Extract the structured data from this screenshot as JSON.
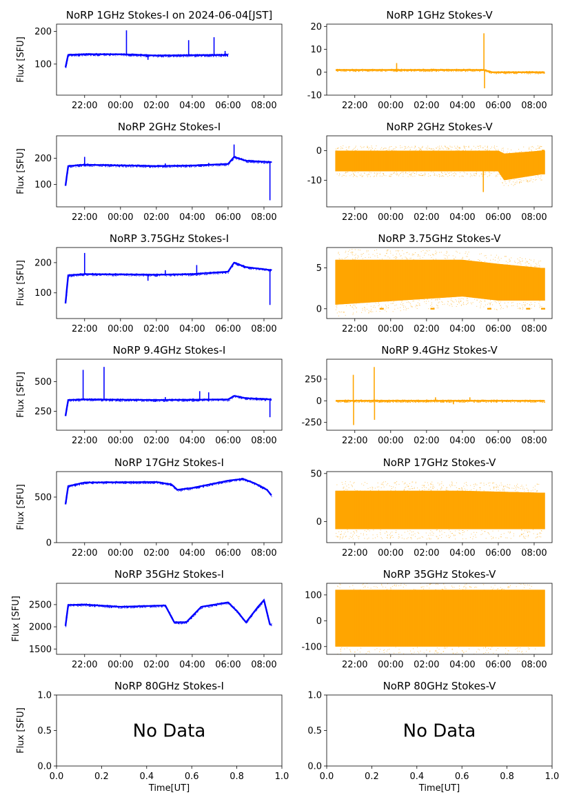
{
  "figure": {
    "colors": {
      "stokes_i": "#0000ff",
      "stokes_v": "#ffa500",
      "axis": "#000000"
    },
    "no_data_label": "No Data",
    "time_ticks": [
      "22:00",
      "00:00",
      "02:00",
      "04:00",
      "06:00",
      "08:00"
    ]
  },
  "chart_data": [
    {
      "type": "scatter",
      "title": "NoRP 1GHz Stokes-I on 2024-06-04[JST]",
      "ylabel": "Flux [SFU]",
      "xlabel": "",
      "xlim": [
        "20:26",
        "09:00"
      ],
      "ylim": [
        5,
        222
      ],
      "yticks": [
        100,
        200
      ],
      "color": "#0000ff",
      "baseline": [
        [
          "20:56",
          90
        ],
        [
          "21:05",
          128
        ],
        [
          "22:00",
          130
        ],
        [
          "00:00",
          130
        ],
        [
          "02:00",
          126
        ],
        [
          "04:00",
          127
        ],
        [
          "06:00",
          128
        ]
      ],
      "spikes": [
        [
          "00:20",
          203
        ],
        [
          "01:32",
          113
        ],
        [
          "03:48",
          173
        ],
        [
          "05:13",
          182
        ],
        [
          "05:50",
          140
        ]
      ],
      "data_end": "06:00"
    },
    {
      "type": "scatter",
      "title": "NoRP 1GHz Stokes-V",
      "ylabel": "",
      "xlabel": "",
      "xlim": [
        "20:26",
        "09:00"
      ],
      "ylim": [
        -10,
        21
      ],
      "yticks": [
        -10,
        0,
        10,
        20
      ],
      "color": "#ffa500",
      "baseline": [
        [
          "20:56",
          1
        ],
        [
          "02:00",
          1
        ],
        [
          "05:10",
          1
        ],
        [
          "05:40",
          0
        ],
        [
          "08:35",
          0
        ]
      ],
      "spikes": [
        [
          "00:20",
          4
        ],
        [
          "05:12",
          17
        ],
        [
          "05:14",
          -7
        ]
      ],
      "data_end": "08:35"
    },
    {
      "type": "scatter",
      "title": "NoRP 2GHz Stokes-I",
      "ylabel": "Flux [SFU]",
      "xlabel": "",
      "xlim": [
        "20:26",
        "09:00"
      ],
      "ylim": [
        15,
        285
      ],
      "yticks": [
        100,
        200
      ],
      "color": "#0000ff",
      "baseline": [
        [
          "20:56",
          95
        ],
        [
          "21:05",
          170
        ],
        [
          "22:00",
          175
        ],
        [
          "02:00",
          170
        ],
        [
          "04:00",
          172
        ],
        [
          "06:00",
          178
        ],
        [
          "06:20",
          205
        ],
        [
          "07:00",
          190
        ],
        [
          "08:25",
          185
        ]
      ],
      "spikes": [
        [
          "22:00",
          205
        ],
        [
          "02:30",
          180
        ],
        [
          "04:55",
          182
        ],
        [
          "06:20",
          252
        ],
        [
          "08:20",
          40
        ]
      ],
      "data_end": "08:25"
    },
    {
      "type": "scatter",
      "title": "NoRP 2GHz Stokes-V",
      "ylabel": "",
      "xlabel": "",
      "xlim": [
        "20:26",
        "09:00"
      ],
      "ylim": [
        -19,
        5
      ],
      "yticks": [
        -10,
        0
      ],
      "color": "#ffa500",
      "band": [
        [
          "20:56",
          -7,
          0
        ],
        [
          "06:00",
          -7,
          0
        ],
        [
          "06:20",
          -10,
          -1
        ],
        [
          "08:25",
          -8,
          0
        ]
      ],
      "spikes": [
        [
          "05:10",
          -14
        ]
      ],
      "data_end": "08:35"
    },
    {
      "type": "scatter",
      "title": "NoRP 3.75GHz Stokes-I",
      "ylabel": "Flux [SFU]",
      "xlabel": "",
      "xlim": [
        "20:26",
        "09:00"
      ],
      "ylim": [
        15,
        250
      ],
      "yticks": [
        100,
        200
      ],
      "color": "#0000ff",
      "baseline": [
        [
          "20:56",
          65
        ],
        [
          "21:05",
          158
        ],
        [
          "22:00",
          162
        ],
        [
          "02:00",
          160
        ],
        [
          "04:00",
          162
        ],
        [
          "06:00",
          170
        ],
        [
          "06:20",
          200
        ],
        [
          "07:00",
          185
        ],
        [
          "08:25",
          175
        ]
      ],
      "spikes": [
        [
          "22:00",
          232
        ],
        [
          "01:32",
          140
        ],
        [
          "02:30",
          175
        ],
        [
          "04:15",
          192
        ],
        [
          "08:20",
          60
        ]
      ],
      "data_end": "08:25"
    },
    {
      "type": "scatter",
      "title": "NoRP 3.75GHz Stokes-V",
      "ylabel": "",
      "xlabel": "",
      "xlim": [
        "20:26",
        "09:00"
      ],
      "ylim": [
        -1.2,
        7.5
      ],
      "yticks": [
        0,
        5
      ],
      "color": "#ffa500",
      "band": [
        [
          "20:56",
          0.5,
          6
        ],
        [
          "04:00",
          1.5,
          6
        ],
        [
          "06:00",
          1,
          5.5
        ],
        [
          "08:25",
          1,
          5
        ]
      ],
      "zeros": [
        "23:30",
        "02:20",
        "05:30",
        "07:40",
        "08:30"
      ],
      "data_end": "08:35"
    },
    {
      "type": "scatter",
      "title": "NoRP 9.4GHz Stokes-I",
      "ylabel": "Flux [SFU]",
      "xlabel": "",
      "xlim": [
        "20:26",
        "09:00"
      ],
      "ylim": [
        90,
        690
      ],
      "yticks": [
        250,
        500
      ],
      "color": "#0000ff",
      "baseline": [
        [
          "20:56",
          210
        ],
        [
          "21:05",
          345
        ],
        [
          "22:00",
          350
        ],
        [
          "02:00",
          345
        ],
        [
          "06:00",
          350
        ],
        [
          "06:20",
          380
        ],
        [
          "07:00",
          360
        ],
        [
          "08:25",
          350
        ]
      ],
      "spikes": [
        [
          "21:55",
          600
        ],
        [
          "23:05",
          625
        ],
        [
          "02:30",
          370
        ],
        [
          "04:25",
          420
        ],
        [
          "04:55",
          410
        ],
        [
          "08:20",
          200
        ]
      ],
      "data_end": "08:25"
    },
    {
      "type": "scatter",
      "title": "NoRP 9.4GHz Stokes-V",
      "ylabel": "",
      "xlabel": "",
      "xlim": [
        "20:26",
        "09:00"
      ],
      "ylim": [
        -340,
        480
      ],
      "yticks": [
        -250,
        0,
        250
      ],
      "color": "#ffa500",
      "baseline": [
        [
          "20:56",
          0
        ],
        [
          "08:35",
          0
        ]
      ],
      "spikes": [
        [
          "21:55",
          300
        ],
        [
          "21:56",
          -280
        ],
        [
          "23:05",
          390
        ],
        [
          "23:06",
          -220
        ],
        [
          "02:30",
          40
        ],
        [
          "03:30",
          -40
        ],
        [
          "04:25",
          40
        ]
      ],
      "data_end": "08:35"
    },
    {
      "type": "scatter",
      "title": "NoRP 17GHz Stokes-I",
      "ylabel": "Flux [SFU]",
      "xlabel": "",
      "xlim": [
        "20:26",
        "09:00"
      ],
      "ylim": [
        0,
        780
      ],
      "yticks": [
        0,
        500
      ],
      "color": "#0000ff",
      "baseline": [
        [
          "20:56",
          420
        ],
        [
          "21:05",
          620
        ],
        [
          "22:00",
          660
        ],
        [
          "02:00",
          665
        ],
        [
          "02:50",
          640
        ],
        [
          "03:10",
          580
        ],
        [
          "04:00",
          600
        ],
        [
          "06:00",
          680
        ],
        [
          "06:50",
          700
        ],
        [
          "07:30",
          650
        ],
        [
          "08:10",
          580
        ],
        [
          "08:25",
          520
        ]
      ],
      "spikes": [],
      "data_end": "08:25"
    },
    {
      "type": "scatter",
      "title": "NoRP 17GHz Stokes-V",
      "ylabel": "",
      "xlabel": "",
      "xlim": [
        "20:26",
        "09:00"
      ],
      "ylim": [
        -22,
        52
      ],
      "yticks": [
        0,
        50
      ],
      "color": "#ffa500",
      "band": [
        [
          "20:56",
          -8,
          32
        ],
        [
          "04:00",
          -8,
          32
        ],
        [
          "08:25",
          -8,
          30
        ]
      ],
      "data_end": "08:35"
    },
    {
      "type": "scatter",
      "title": "NoRP 35GHz Stokes-I",
      "ylabel": "Flux [SFU]",
      "xlabel": "",
      "xlim": [
        "20:26",
        "09:00"
      ],
      "ylim": [
        1380,
        2980
      ],
      "yticks": [
        1500,
        2000,
        2500
      ],
      "color": "#0000ff",
      "baseline": [
        [
          "20:56",
          2020
        ],
        [
          "21:05",
          2490
        ],
        [
          "22:00",
          2500
        ],
        [
          "00:00",
          2450
        ],
        [
          "02:30",
          2480
        ],
        [
          "03:00",
          2100
        ],
        [
          "03:40",
          2100
        ],
        [
          "04:30",
          2450
        ],
        [
          "06:00",
          2550
        ],
        [
          "06:30",
          2350
        ],
        [
          "07:00",
          2100
        ],
        [
          "07:40",
          2450
        ],
        [
          "08:00",
          2600
        ],
        [
          "08:20",
          2050
        ]
      ],
      "spikes": [],
      "data_end": "08:25"
    },
    {
      "type": "scatter",
      "title": "NoRP 35GHz Stokes-V",
      "ylabel": "",
      "xlabel": "",
      "xlim": [
        "20:26",
        "09:00"
      ],
      "ylim": [
        -130,
        145
      ],
      "yticks": [
        -100,
        0,
        100
      ],
      "color": "#ffa500",
      "band": [
        [
          "20:56",
          -100,
          120
        ],
        [
          "08:25",
          -100,
          120
        ]
      ],
      "data_end": "08:35"
    },
    {
      "type": "scatter",
      "title": "NoRP 80GHz Stokes-I",
      "ylabel": "Flux [SFU]",
      "xlabel": "Time[UT]",
      "xlim": [
        0,
        1
      ],
      "ylim": [
        0,
        1
      ],
      "yticks": [
        0.0,
        0.5,
        1.0
      ],
      "xticks": [
        0.0,
        0.2,
        0.4,
        0.6,
        0.8,
        1.0
      ],
      "no_data": true
    },
    {
      "type": "scatter",
      "title": "NoRP 80GHz Stokes-V",
      "ylabel": "",
      "xlabel": "Time[UT]",
      "xlim": [
        0,
        1
      ],
      "ylim": [
        0,
        1
      ],
      "yticks": [
        0.0,
        0.5,
        1.0
      ],
      "xticks": [
        0.0,
        0.2,
        0.4,
        0.6,
        0.8,
        1.0
      ],
      "no_data": true
    }
  ]
}
